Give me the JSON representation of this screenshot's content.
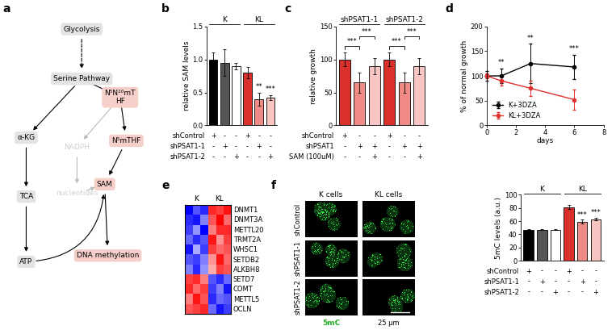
{
  "diagram": {
    "panel": "a",
    "nodes": [
      {
        "label": "Glycolysis",
        "color": "#e3e3e3",
        "text_color": "#000000"
      },
      {
        "label": "Serine Pathway",
        "color": "#e3e3e3",
        "text_color": "#000000"
      },
      {
        "label": "α-KG",
        "color": "#e3e3e3",
        "text_color": "#000000"
      },
      {
        "label": "TCA",
        "color": "#e3e3e3",
        "text_color": "#000000"
      },
      {
        "label": "ATP",
        "color": "#e3e3e3",
        "text_color": "#000000"
      },
      {
        "label": "N⁵N¹⁰mT\nHF",
        "color": "#f6cfcb",
        "text_color": "#000000"
      },
      {
        "label": "NADPH",
        "color": null,
        "text_color": "#cfcfcf"
      },
      {
        "label": "nucleotides",
        "color": null,
        "text_color": "#cfcfcf"
      },
      {
        "label": "N⁵mTHF",
        "color": "#f6cfcb",
        "text_color": "#000000"
      },
      {
        "label": "SAM",
        "color": "#f6cfcb",
        "text_color": "#000000"
      },
      {
        "label": "DNA methylation",
        "color": "#f6cfcb",
        "text_color": "#000000"
      }
    ],
    "edges": [
      {
        "from": 0,
        "to": 1,
        "color": "#000000",
        "line_style": "dashed"
      },
      {
        "from": 1,
        "to": 2,
        "color": "#000000",
        "line_style": "solid"
      },
      {
        "from": 1,
        "to": 5,
        "color": "#000000",
        "line_style": "solid"
      },
      {
        "from": 2,
        "to": 3,
        "color": "#000000",
        "line_style": "solid"
      },
      {
        "from": 3,
        "to": 4,
        "color": "#000000",
        "line_style": "solid"
      },
      {
        "from": 5,
        "to": 6,
        "color": "#bbbbbb",
        "line_style": "solid"
      },
      {
        "from": 6,
        "to": 7,
        "color": "#bbbbbb",
        "line_style": "solid"
      },
      {
        "from": 7,
        "to": 9,
        "color": "#bbbbbb",
        "line_style": "solid"
      },
      {
        "from": 5,
        "to": 8,
        "color": "#000000",
        "line_style": "solid"
      },
      {
        "from": 8,
        "to": 9,
        "color": "#000000",
        "line_style": "solid"
      },
      {
        "from": 9,
        "to": 10,
        "color": "#000000",
        "line_style": "solid"
      },
      {
        "from": 4,
        "to": 9,
        "color": "#000000",
        "line_style": "solid",
        "curved": true
      }
    ]
  },
  "chart_data": [
    {
      "panel": "b",
      "type": "bar",
      "y_label": "relative SAM levels",
      "values": [
        1.0,
        0.95,
        0.9,
        0.8,
        0.4,
        0.42
      ],
      "errors": [
        0.1,
        0.2,
        0.05,
        0.08,
        0.1,
        0.04
      ],
      "colors": [
        "#000000",
        "#555555",
        "#ffffff",
        "#d9302c",
        "#f08a85",
        "#f9c5c2"
      ],
      "significance": [
        null,
        null,
        null,
        null,
        "**",
        "***"
      ],
      "groups": [
        {
          "label": "K",
          "size": 3
        },
        {
          "label": "KL",
          "size": 3
        }
      ],
      "conditions": [
        {
          "label": "shControl",
          "marks": [
            "+",
            "-",
            "-",
            "+",
            "-",
            "-"
          ]
        },
        {
          "label": "shPSAT1-1",
          "marks": [
            "-",
            "+",
            "-",
            "-",
            "+",
            "-"
          ]
        },
        {
          "label": "shPSAT1-2",
          "marks": [
            "-",
            "-",
            "+",
            "-",
            "-",
            "+"
          ]
        }
      ],
      "ylim": [
        0,
        1.5
      ],
      "yticks": [
        0.0,
        0.5,
        1.0,
        1.5
      ],
      "tick_labels": "y"
    },
    {
      "panel": "c",
      "type": "bar",
      "y_label": "relative growth",
      "values": [
        100,
        65,
        90,
        100,
        65,
        90
      ],
      "errors": [
        10,
        15,
        12,
        10,
        15,
        12
      ],
      "colors": [
        "#d9302c",
        "#f08a85",
        "#f9c5c2",
        "#d9302c",
        "#f08a85",
        "#f9c5c2"
      ],
      "comparisons": [
        {
          "between": [
            0,
            1
          ],
          "label": "***"
        },
        {
          "between": [
            1,
            2
          ],
          "label": "***"
        },
        {
          "between": [
            3,
            4
          ],
          "label": "***"
        },
        {
          "between": [
            4,
            5
          ],
          "label": "***"
        }
      ],
      "groups": [
        {
          "label": "shPSAT1-1",
          "size": 3
        },
        {
          "label": "shPSAT1-2",
          "size": 3
        }
      ],
      "conditions": [
        {
          "label": "shControl",
          "marks": [
            "+",
            "-",
            "-",
            "+",
            "-",
            "-"
          ]
        },
        {
          "label": "shPSAT1",
          "marks": [
            "-",
            "+",
            "+",
            "-",
            "+",
            "+"
          ]
        },
        {
          "label": "SAM (100uM)",
          "marks": [
            "-",
            "-",
            "+",
            "-",
            "-",
            "+"
          ]
        }
      ],
      "ylim": [
        0,
        150
      ],
      "yticks": [
        0,
        50,
        100,
        150
      ],
      "tick_labels": "y"
    },
    {
      "panel": "d",
      "type": "line",
      "y_label": "% of normal growth",
      "x_label": "days",
      "x": [
        0,
        1,
        3,
        6
      ],
      "series": [
        {
          "name": "K+3DZA",
          "color": "#000000",
          "marker": "o",
          "line_style": "solid",
          "values": [
            100,
            100,
            125,
            118
          ],
          "errors": [
            10,
            15,
            40,
            25
          ]
        },
        {
          "name": "KL+3DZA",
          "color": "#e0302b",
          "marker": "o",
          "line_style": "solid",
          "values": [
            100,
            90,
            75,
            52
          ],
          "errors": [
            5,
            10,
            15,
            20
          ]
        }
      ],
      "annotations": [
        {
          "x": 1,
          "label": "**"
        },
        {
          "x": 3,
          "label": "**"
        },
        {
          "x": 6,
          "label": "***"
        }
      ],
      "xlim": [
        0,
        8
      ],
      "xticks": [
        0,
        2,
        4,
        6,
        8
      ],
      "ylim": [
        0,
        200
      ],
      "yticks": [
        0,
        50,
        100,
        150,
        200
      ],
      "legend": "lower left"
    },
    {
      "panel": "e",
      "type": "heatmap",
      "rows": [
        "DNMT1",
        "DNMT3A",
        "METTL20",
        "TRMT2A",
        "WHSC1",
        "SETDB2",
        "ALKBH8",
        "SETD7",
        "COMT",
        "METTL5",
        "OCLN"
      ],
      "column_groups": [
        {
          "label": "K",
          "size": 3
        },
        {
          "label": "KL",
          "size": 3
        }
      ],
      "cells": [
        [
          -1.2,
          -0.8,
          -1.0,
          1.0,
          0.9,
          1.1
        ],
        [
          -1.0,
          -1.1,
          -0.6,
          0.8,
          1.2,
          0.7
        ],
        [
          -0.9,
          -0.5,
          -1.2,
          0.6,
          1.0,
          1.0
        ],
        [
          -0.7,
          -1.0,
          -0.8,
          1.1,
          0.5,
          0.9
        ],
        [
          -1.1,
          -0.4,
          -0.9,
          0.9,
          0.7,
          0.8
        ],
        [
          -0.8,
          -0.9,
          -0.6,
          0.5,
          1.1,
          0.7
        ],
        [
          -0.6,
          -1.0,
          -0.5,
          0.4,
          0.9,
          0.8
        ],
        [
          0.9,
          1.0,
          0.6,
          -0.8,
          -1.0,
          -0.7
        ],
        [
          1.0,
          0.7,
          0.9,
          -0.9,
          -0.6,
          -1.1
        ],
        [
          0.6,
          1.1,
          0.8,
          -1.0,
          -0.7,
          -0.8
        ],
        [
          0.8,
          0.9,
          1.0,
          -0.7,
          -1.1,
          -0.9
        ]
      ],
      "tick_labels": "y"
    },
    {
      "type": "bar",
      "y_label": "5mC levels (a.u.)",
      "values": [
        47,
        47,
        47,
        81,
        59,
        63
      ],
      "errors": [
        1,
        1,
        1,
        3,
        3,
        2
      ],
      "colors": [
        "#000000",
        "#555555",
        "#ffffff",
        "#d9302c",
        "#f08a85",
        "#f9c5c2"
      ],
      "significance": [
        null,
        null,
        null,
        null,
        "***",
        "***"
      ],
      "groups": [
        {
          "label": "K",
          "size": 3
        },
        {
          "label": "KL",
          "size": 3
        }
      ],
      "conditions": [
        {
          "label": "shControl",
          "marks": [
            "+",
            "-",
            "-",
            "+",
            "-",
            "-"
          ]
        },
        {
          "label": "shPSAT1-1",
          "marks": [
            "-",
            "+",
            "-",
            "-",
            "+",
            "-"
          ]
        },
        {
          "label": "shPSAT1-2",
          "marks": [
            "-",
            "-",
            "+",
            "-",
            "-",
            "+"
          ]
        }
      ],
      "ylim": [
        0,
        100
      ],
      "yticks": [
        0,
        20,
        40,
        60,
        80,
        100
      ],
      "tick_labels": "y"
    }
  ],
  "micrographs": {
    "panel": "f",
    "columns": [
      "K cells",
      "KL cells"
    ],
    "rows": [
      "shControl",
      "shPSAT1-1",
      "shPSAT1-2"
    ],
    "stain": "5mC",
    "scale_bar": "25 µm"
  }
}
